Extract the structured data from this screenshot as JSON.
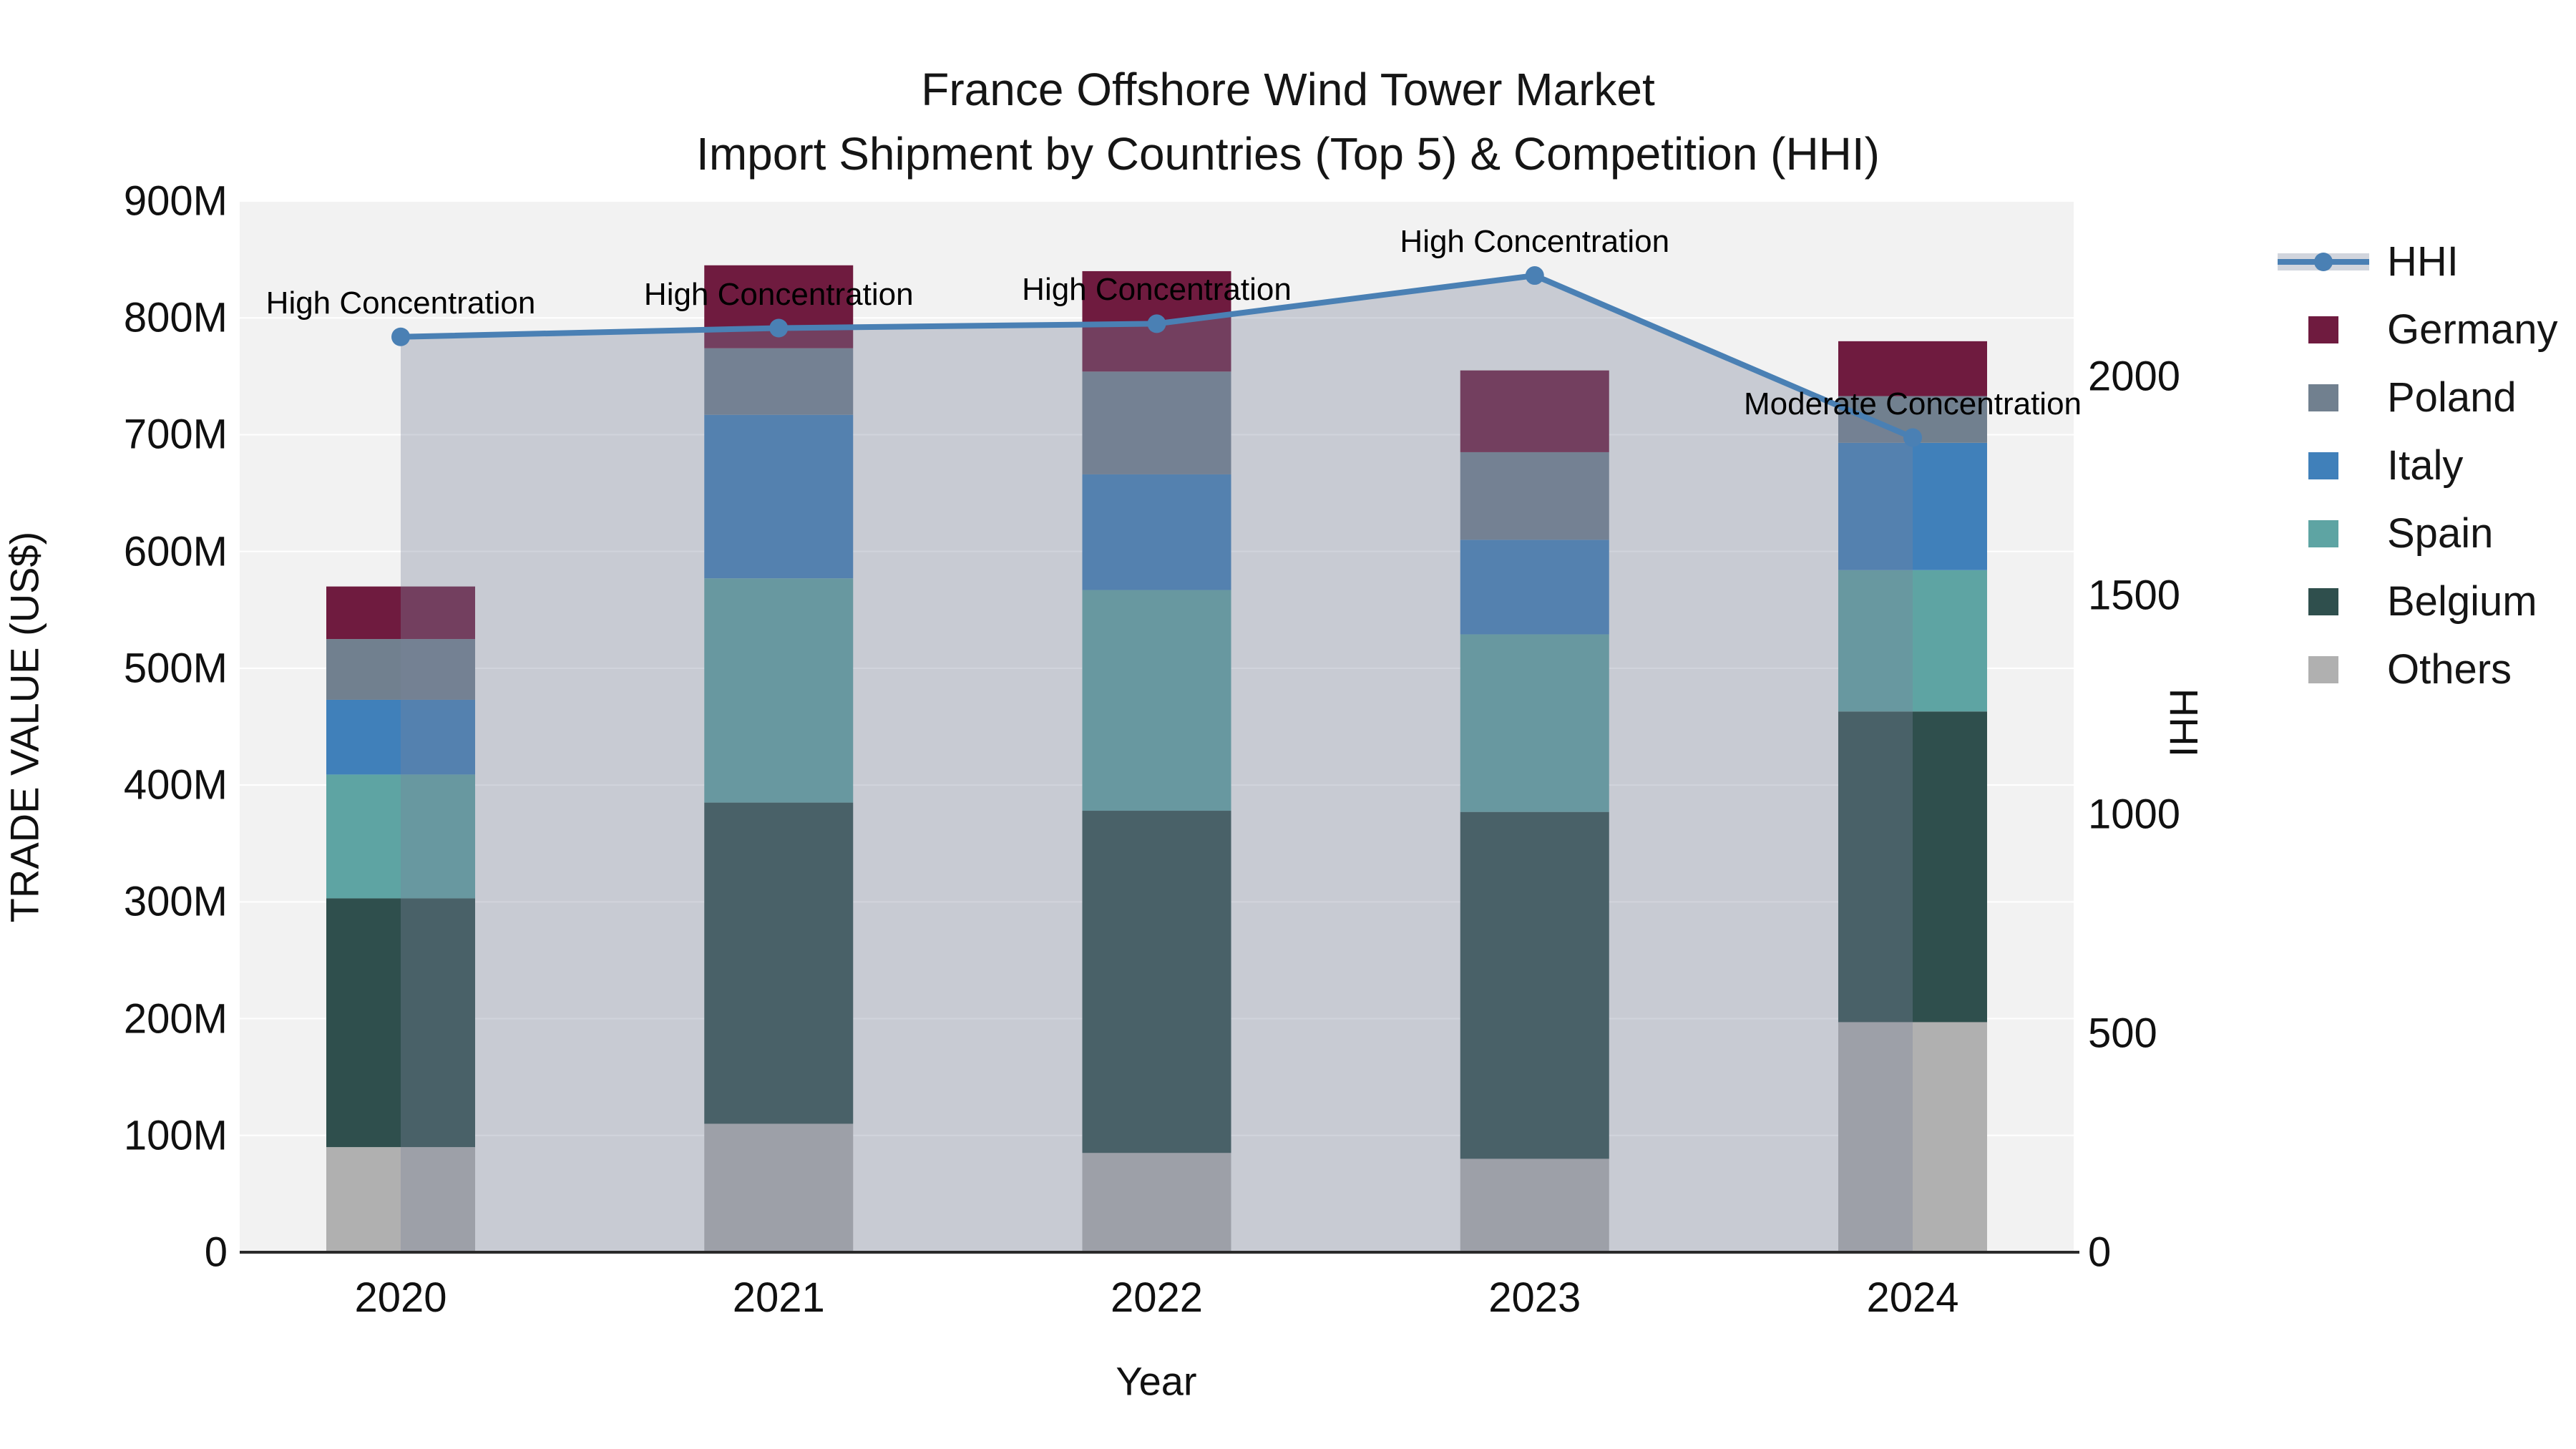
{
  "title": {
    "line1": "France Offshore Wind Tower Market",
    "line2": "Import Shipment by Countries (Top 5) & Competition (HHI)"
  },
  "axes": {
    "x_title": "Year",
    "y_left_title": "TRADE VALUE (US$)",
    "y_right_title": "HHI",
    "y_left_ticks": [
      "0",
      "100M",
      "200M",
      "300M",
      "400M",
      "500M",
      "600M",
      "700M",
      "800M",
      "900M"
    ],
    "y_right_ticks": [
      "0",
      "500",
      "1000",
      "1500",
      "2000"
    ]
  },
  "colors": {
    "plot_bg": "#f2f2f2",
    "gridline": "#ffffff",
    "axis_line": "#2a2a2a",
    "hhi_line": "#4a80b4",
    "hhi_fill": "rgba(122,133,156,0.35)",
    "legend_band": "#d1d5dd"
  },
  "chart_data": {
    "type": "bar+line",
    "title": "France Offshore Wind Tower Market — Import Shipment by Countries (Top 5) & Competition (HHI)",
    "xlabel": "Year",
    "ylabel": "TRADE VALUE (US$)",
    "y2label": "HHI",
    "ylim_millions": [
      0,
      900
    ],
    "y2lim": [
      0,
      2400
    ],
    "grid": true,
    "legend_position": "right",
    "categories": [
      "2020",
      "2021",
      "2022",
      "2023",
      "2024"
    ],
    "stack_order_bottom_to_top": [
      "Others",
      "Belgium",
      "Spain",
      "Italy",
      "Poland",
      "Germany"
    ],
    "series": [
      {
        "name": "Others",
        "color": "#b0b0b0",
        "values_millions": [
          90,
          110,
          85,
          80,
          197
        ]
      },
      {
        "name": "Belgium",
        "color": "#2f4f4d",
        "values_millions": [
          213,
          275,
          293,
          297,
          266
        ]
      },
      {
        "name": "Spain",
        "color": "#5ea4a3",
        "values_millions": [
          106,
          192,
          189,
          152,
          121
        ]
      },
      {
        "name": "Italy",
        "color": "#4080ba",
        "values_millions": [
          64,
          140,
          99,
          81,
          109
        ]
      },
      {
        "name": "Poland",
        "color": "#71808f",
        "values_millions": [
          52,
          57,
          88,
          75,
          40
        ]
      },
      {
        "name": "Germany",
        "color": "#6f1b3f",
        "values_millions": [
          45,
          71,
          86,
          70,
          47
        ]
      }
    ],
    "bar_totals_millions": [
      570,
      845,
      840,
      755,
      780
    ],
    "hhi": {
      "name": "HHI",
      "values": [
        2090,
        2110,
        2120,
        2230,
        1860
      ],
      "annotations": [
        "High Concentration",
        "High Concentration",
        "High Concentration",
        "High Concentration",
        "Moderate Concentration"
      ]
    }
  },
  "legend": {
    "items": [
      {
        "label": "HHI",
        "type": "line",
        "color": "#4a80b4"
      },
      {
        "label": "Germany",
        "type": "swatch",
        "color": "#6f1b3f"
      },
      {
        "label": "Poland",
        "type": "swatch",
        "color": "#71808f"
      },
      {
        "label": "Italy",
        "type": "swatch",
        "color": "#4080ba"
      },
      {
        "label": "Spain",
        "type": "swatch",
        "color": "#5ea4a3"
      },
      {
        "label": "Belgium",
        "type": "swatch",
        "color": "#2f4f4d"
      },
      {
        "label": "Others",
        "type": "swatch",
        "color": "#b0b0b0"
      }
    ]
  }
}
